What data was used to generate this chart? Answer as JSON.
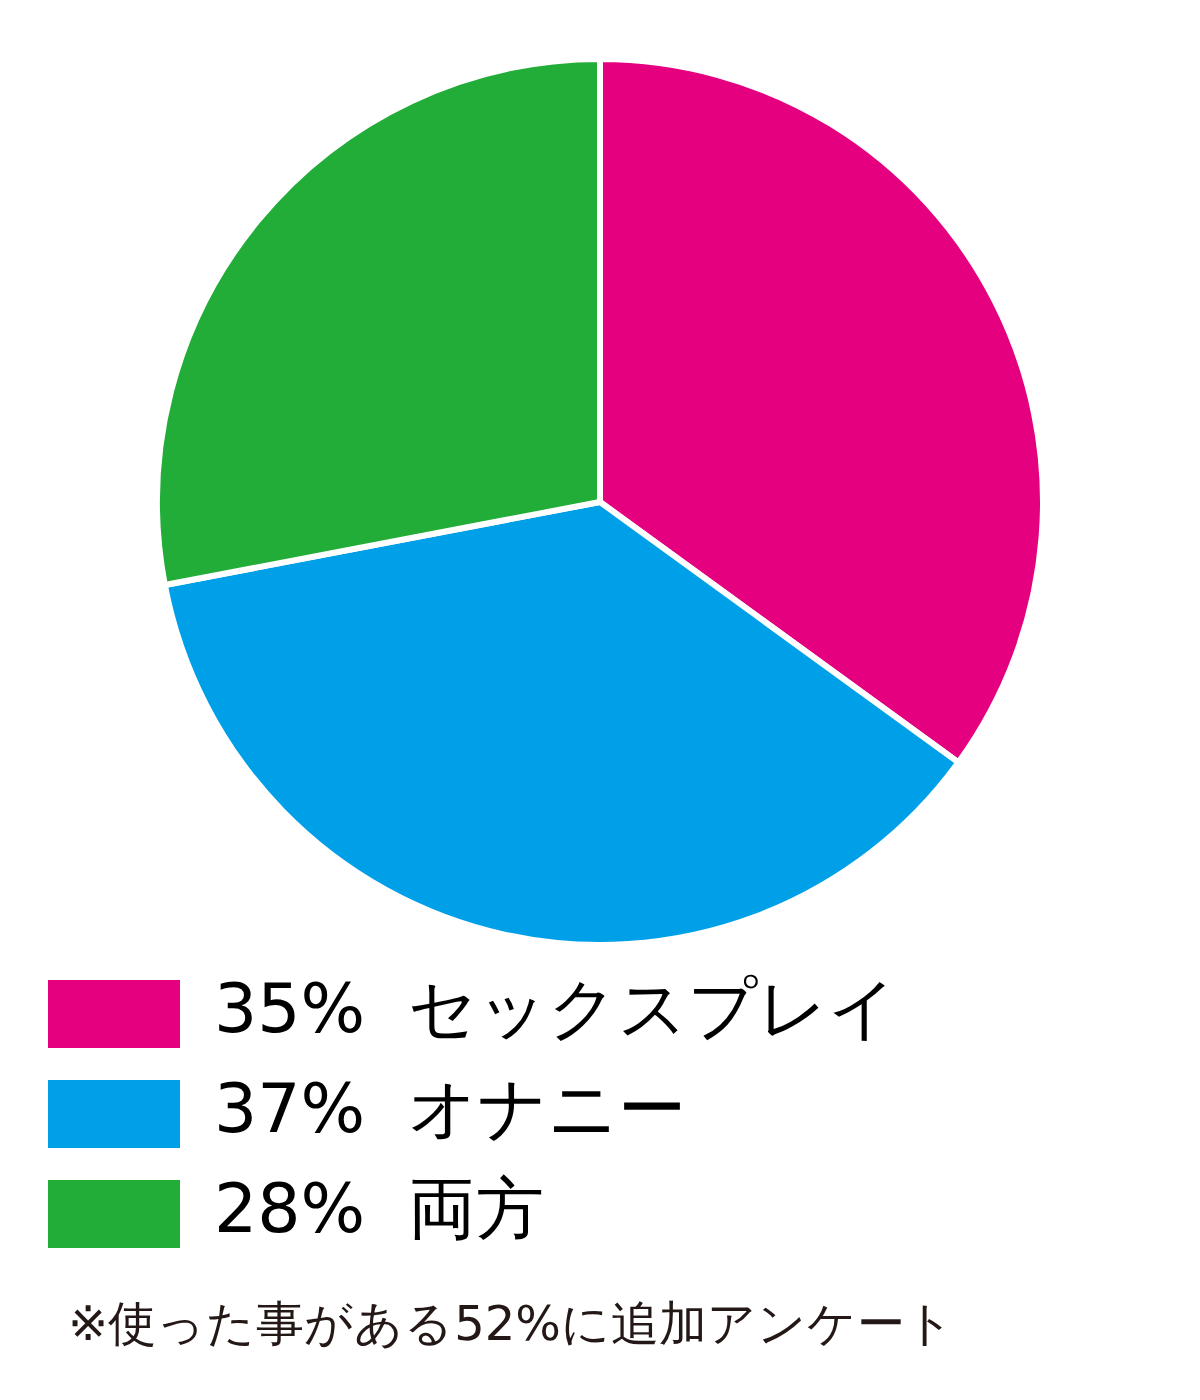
{
  "chart_data": {
    "type": "pie",
    "categories": [
      "セックスプレイ",
      "オナニー",
      "両方"
    ],
    "values": [
      35,
      37,
      28
    ],
    "colors": [
      "#e4007f",
      "#00a0e9",
      "#22ac38"
    ],
    "value_labels": [
      "35%",
      "37%",
      "28%"
    ],
    "legend": "bottom",
    "annotations": [
      "※使った事がある52%に追加アンケート"
    ]
  }
}
